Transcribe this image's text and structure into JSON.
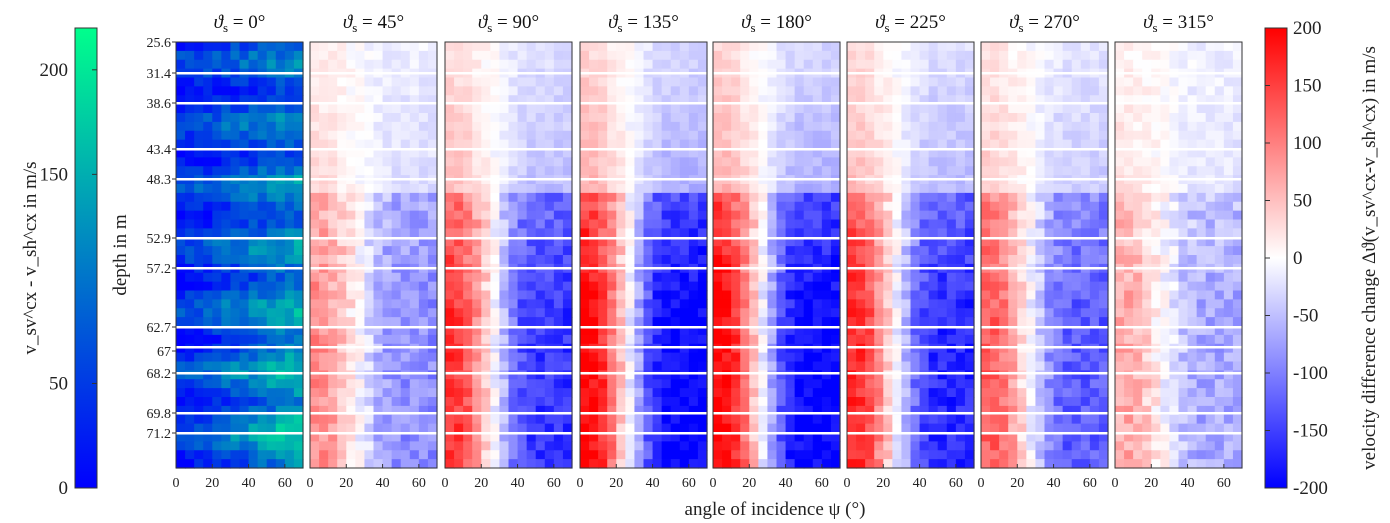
{
  "chart_data": {
    "type": "heatmap",
    "xlabel": "angle of incidence ψ (°)",
    "ylabel": "depth in m",
    "x_ticks": [
      0,
      20,
      40,
      60
    ],
    "xlim": [
      0,
      70
    ],
    "depth_ticks": [
      "25.6",
      "31.4",
      "38.6",
      "43.4",
      "48.3",
      "52.9",
      "57.2",
      "62.7",
      "67",
      "68.2",
      "69.8",
      "71.2"
    ],
    "panels": [
      {
        "title_prefix": "ϑ",
        "title_sub": "s",
        "title_value": " = 0°",
        "colormap": "green",
        "pattern": "abs"
      },
      {
        "title_prefix": "ϑ",
        "title_sub": "s",
        "title_value": " = 45°",
        "colormap": "redblue",
        "amplitude": 0.45
      },
      {
        "title_prefix": "ϑ",
        "title_sub": "s",
        "title_value": " = 90°",
        "colormap": "redblue",
        "amplitude": 0.8
      },
      {
        "title_prefix": "ϑ",
        "title_sub": "s",
        "title_value": " = 135°",
        "colormap": "redblue",
        "amplitude": 1.0
      },
      {
        "title_prefix": "ϑ",
        "title_sub": "s",
        "title_value": " = 180°",
        "colormap": "redblue",
        "amplitude": 1.0
      },
      {
        "title_prefix": "ϑ",
        "title_sub": "s",
        "title_value": " = 225°",
        "colormap": "redblue",
        "amplitude": 0.85
      },
      {
        "title_prefix": "ϑ",
        "title_sub": "s",
        "title_value": " = 270°",
        "colormap": "redblue",
        "amplitude": 0.65
      },
      {
        "title_prefix": "ϑ",
        "title_sub": "s",
        "title_value": " = 315°",
        "colormap": "redblue",
        "amplitude": 0.35
      }
    ],
    "left_colorbar": {
      "label": "v_sv^cx - v_sh^cx in m/s",
      "ticks": [
        0,
        50,
        150,
        200
      ],
      "range": [
        0,
        220
      ],
      "colors": [
        "#0000ff",
        "#00ff8c"
      ]
    },
    "right_colorbar": {
      "label": "velocity difference change Δϑ(v_sv^cx-v_sh^cx) in m/s",
      "ticks": [
        200,
        150,
        100,
        50,
        0,
        -50,
        -100,
        -150,
        -200
      ],
      "range": [
        -200,
        200
      ],
      "colors": [
        "#0000ff",
        "#ffffff",
        "#ff0000"
      ]
    }
  }
}
